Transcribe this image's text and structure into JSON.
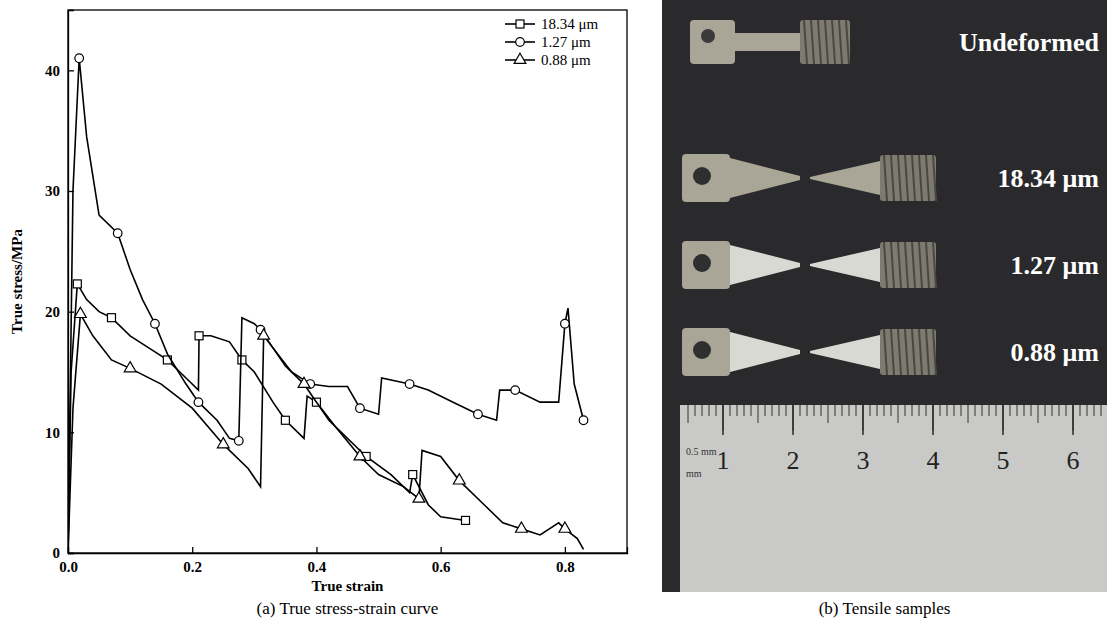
{
  "chart_data": {
    "type": "line",
    "title": "(a) True stress-strain curve",
    "xlabel": "True strain",
    "ylabel": "True stress/MPa",
    "xlim": [
      0,
      0.9
    ],
    "ylim": [
      0,
      45
    ],
    "xticks": [
      {
        "value": 0,
        "label": "0.0"
      },
      0.2,
      0.4,
      0.6,
      0.8
    ],
    "yticks": [
      0,
      10,
      20,
      30,
      40
    ],
    "legend": "top-right",
    "series": [
      {
        "name": "18.34 μm",
        "color": "#000000",
        "marker": "square",
        "x": [
          0,
          0.005,
          0.015,
          0.03,
          0.05,
          0.07,
          0.1,
          0.13,
          0.16,
          0.19,
          0.21,
          0.211,
          0.23,
          0.26,
          0.28,
          0.3,
          0.33,
          0.35,
          0.38,
          0.385,
          0.4,
          0.42,
          0.44,
          0.48,
          0.52,
          0.55,
          0.555,
          0.58,
          0.6,
          0.64
        ],
        "values": [
          0,
          15,
          22.3,
          21,
          20,
          19.5,
          18,
          17,
          16,
          14.5,
          13.5,
          18,
          18,
          17.5,
          16,
          15,
          12.5,
          11,
          9.5,
          13,
          12.5,
          11,
          10,
          8,
          6.5,
          5,
          6.5,
          4,
          3,
          2.7
        ]
      },
      {
        "name": "1.27 μm",
        "color": "#000000",
        "marker": "circle",
        "x": [
          0,
          0.008,
          0.018,
          0.03,
          0.05,
          0.08,
          0.1,
          0.12,
          0.14,
          0.16,
          0.19,
          0.21,
          0.24,
          0.26,
          0.275,
          0.28,
          0.3,
          0.31,
          0.33,
          0.36,
          0.39,
          0.42,
          0.45,
          0.47,
          0.5,
          0.505,
          0.55,
          0.58,
          0.62,
          0.66,
          0.69,
          0.695,
          0.72,
          0.76,
          0.79,
          0.8,
          0.805,
          0.815,
          0.83
        ],
        "values": [
          0,
          30,
          41,
          34.5,
          28,
          26.5,
          23.5,
          21,
          19,
          16.5,
          14,
          12.5,
          11,
          9.5,
          9.3,
          19.5,
          19,
          18.5,
          17,
          15,
          14,
          13.8,
          13.8,
          12,
          11.5,
          14.5,
          14,
          13.5,
          12.5,
          11.5,
          11,
          13.5,
          13.5,
          12.5,
          12.5,
          19,
          20.3,
          14,
          11
        ]
      },
      {
        "name": "0.88 μm",
        "color": "#000000",
        "marker": "triangle",
        "x": [
          0,
          0.008,
          0.02,
          0.04,
          0.07,
          0.1,
          0.15,
          0.2,
          0.25,
          0.29,
          0.31,
          0.315,
          0.33,
          0.35,
          0.38,
          0.4,
          0.43,
          0.47,
          0.5,
          0.54,
          0.565,
          0.57,
          0.6,
          0.63,
          0.67,
          0.7,
          0.73,
          0.76,
          0.79,
          0.8,
          0.82,
          0.83
        ],
        "values": [
          0,
          12,
          19.8,
          18,
          16,
          15.3,
          14,
          12,
          9,
          7,
          5.5,
          18,
          17,
          15.5,
          14,
          12.5,
          10.5,
          8,
          6.5,
          5.5,
          4.5,
          8.5,
          8,
          6,
          4,
          2.5,
          2,
          1.5,
          2.5,
          2,
          1.2,
          0.3
        ]
      }
    ]
  },
  "panel_b": {
    "title": "(b) Tensile samples",
    "samples": [
      "Undeformed",
      "18.34 μm",
      "1.27 μm",
      "0.88 μm"
    ],
    "ruler": {
      "scale_label": "0.5 mm",
      "unit": "mm",
      "numbers": [
        1,
        2,
        3,
        4,
        5,
        6
      ]
    }
  }
}
